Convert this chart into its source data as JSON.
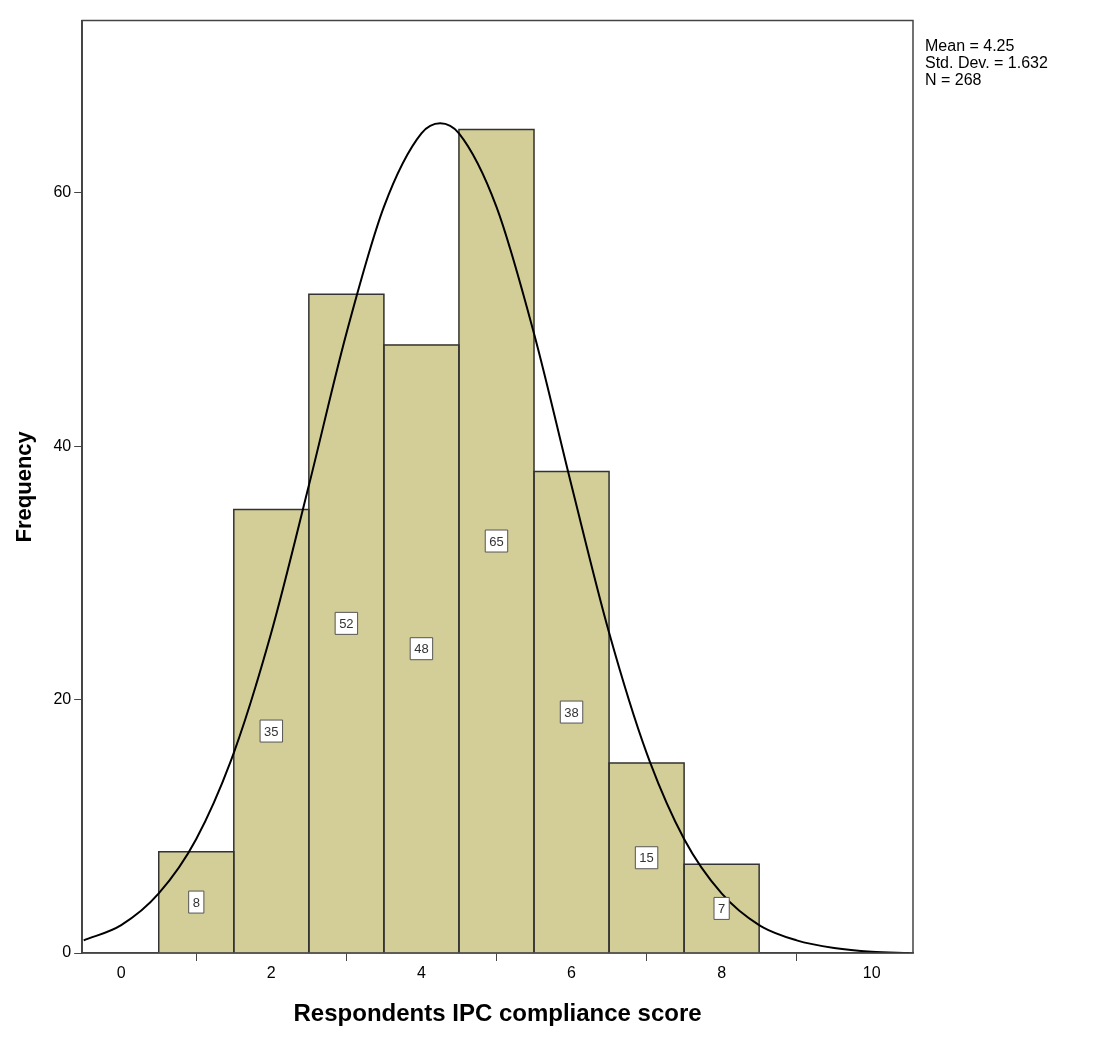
{
  "chart_data": {
    "type": "histogram",
    "xlabel": "Respondents IPC compliance score",
    "ylabel": "Frequency",
    "bins": [
      0.5,
      1.5,
      2.5,
      3.5,
      4.5,
      5.5,
      6.5,
      7.5,
      8.5
    ],
    "values": [
      8,
      35,
      52,
      48,
      65,
      38,
      15,
      7
    ],
    "color": "#d3ce97",
    "value_labels": [
      "8",
      "35",
      "52",
      "48",
      "65",
      "38",
      "15",
      "7"
    ],
    "series": [
      {
        "type": "line",
        "color": "#000000",
        "x": [
          -0.5,
          0,
          0.5,
          1,
          1.5,
          2,
          2.5,
          3,
          3.5,
          4,
          4.25,
          4.5,
          5,
          5.5,
          6,
          6.5,
          7,
          7.5,
          8,
          8.5,
          9,
          9.5,
          10,
          10.5
        ],
        "values": [
          1.0,
          2.2,
          4.7,
          9.0,
          15.8,
          25.3,
          36.9,
          48.9,
          58.9,
          64.7,
          65.5,
          64.7,
          58.9,
          48.9,
          36.9,
          25.3,
          15.8,
          9.0,
          4.7,
          2.2,
          1.0,
          0.4,
          0.1,
          0.0
        ]
      }
    ],
    "xlim": [
      -0.52,
      10.55
    ],
    "xticks": [
      0,
      2,
      4,
      6,
      8,
      10
    ],
    "ylim": [
      0,
      73.6
    ],
    "yticks": [
      0,
      20,
      40,
      60
    ],
    "grid": false,
    "legend": false,
    "marker": "none",
    "annotations": [
      "Mean = 4.25",
      "Std. Dev. = 1.632",
      "N = 268"
    ]
  }
}
